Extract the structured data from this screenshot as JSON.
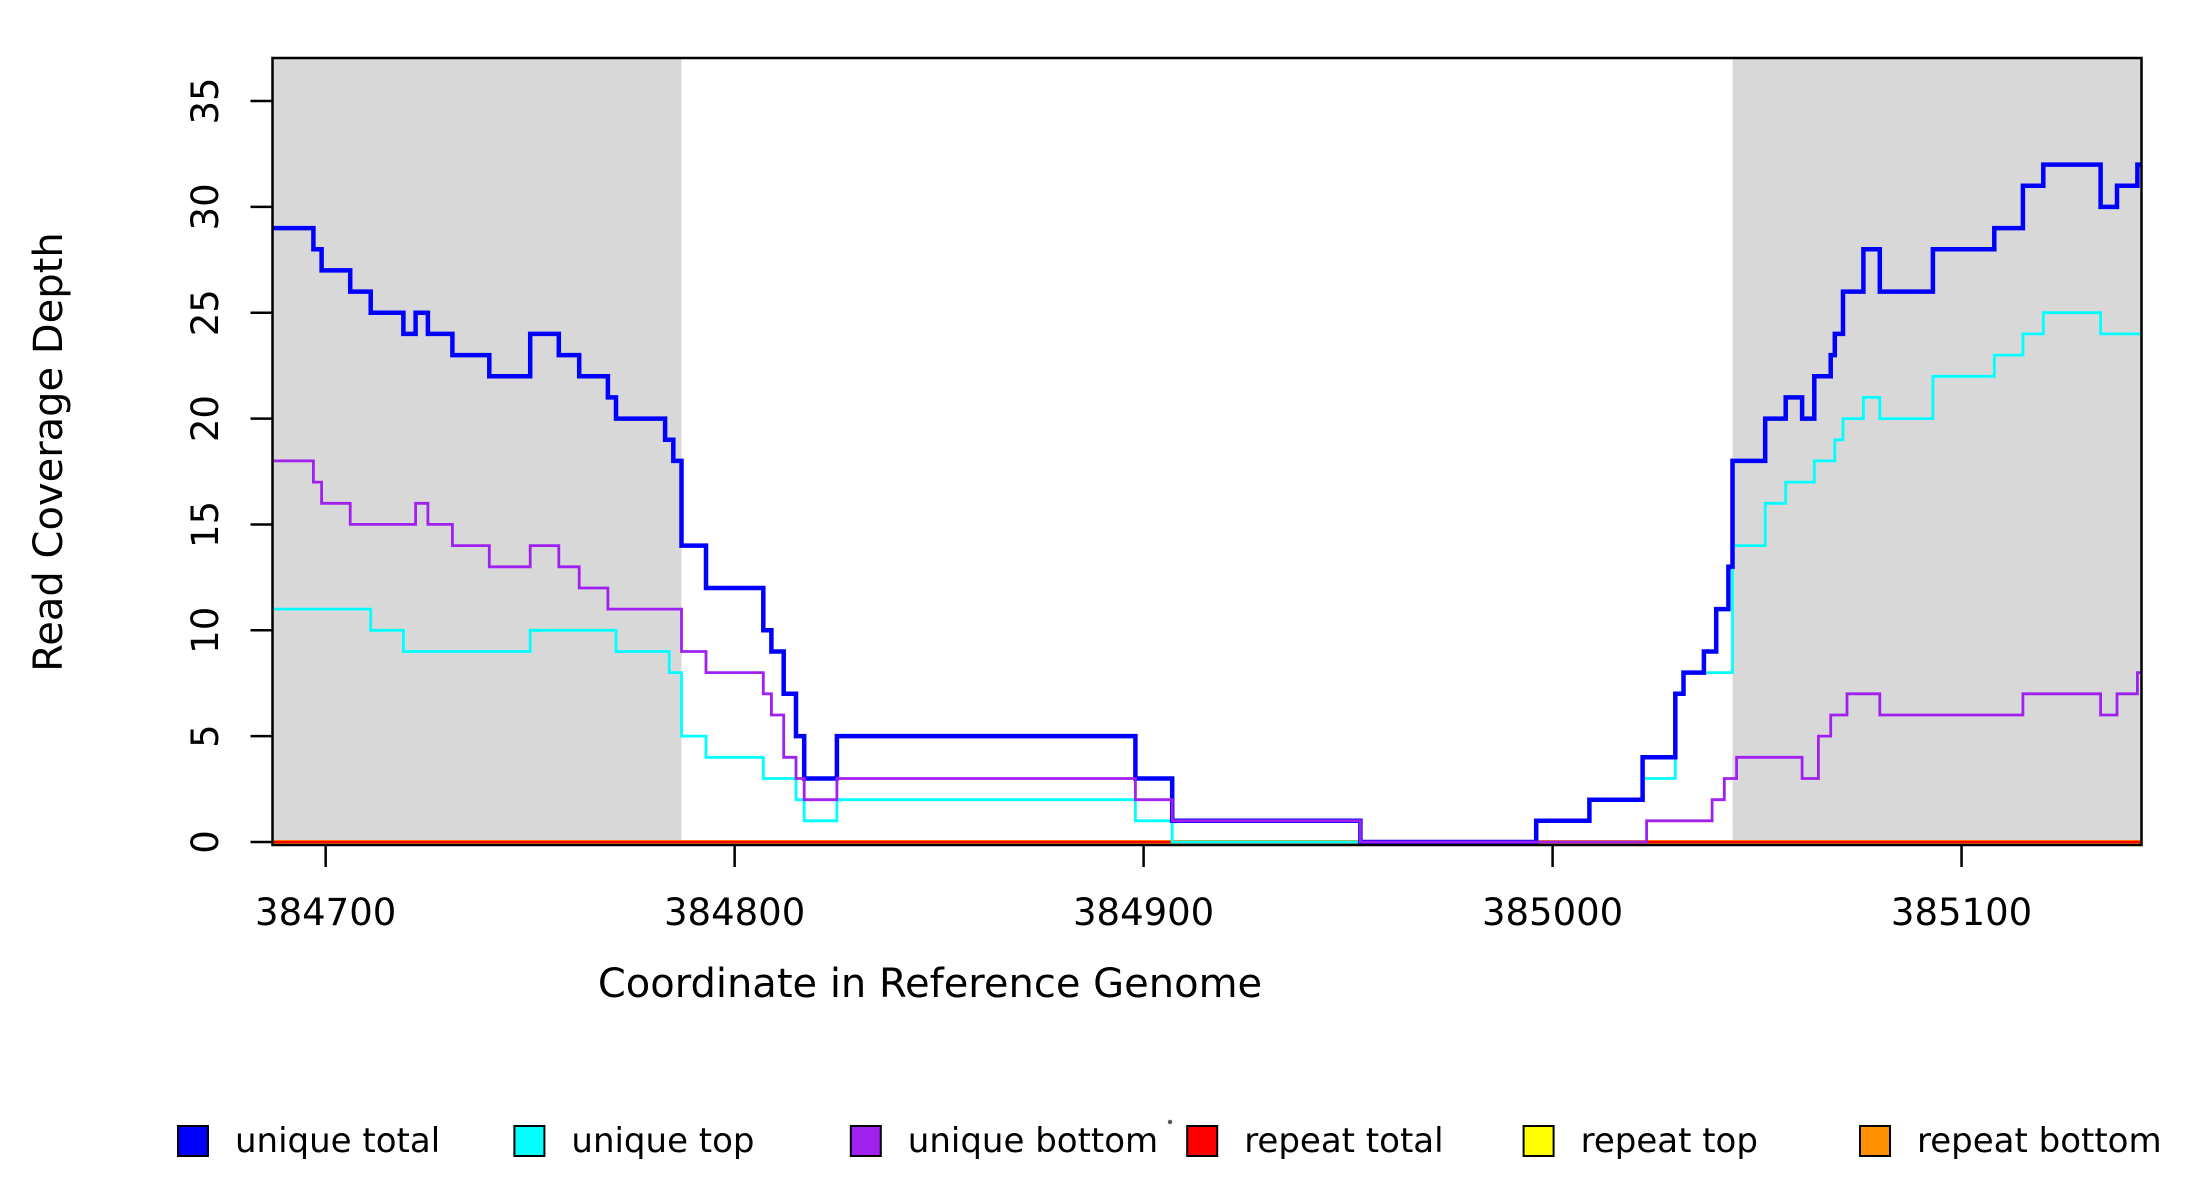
{
  "chart_data": {
    "type": "line",
    "subtype": "step",
    "title": "",
    "xlabel": "Coordinate in Reference Genome",
    "ylabel": "Read Coverage Depth",
    "x_range": [
      384687,
      385144
    ],
    "y_range": [
      0,
      37
    ],
    "x_ticks": [
      384700,
      384800,
      384900,
      385000,
      385100
    ],
    "y_ticks": [
      0,
      5,
      10,
      15,
      20,
      25,
      30,
      35
    ],
    "grid": false,
    "legend_position": "bottom",
    "shaded_regions": [
      {
        "name": "left-repeat-region",
        "from": 384687,
        "to": 384787
      },
      {
        "name": "right-repeat-region",
        "from": 385044,
        "to": 385144
      }
    ],
    "series": [
      {
        "name": "repeat bottom",
        "color": "#FF9100",
        "width": 4,
        "steps": [
          [
            384687,
            0
          ]
        ]
      },
      {
        "name": "repeat top",
        "color": "#FFFF00",
        "width": 2.5,
        "steps": [
          [
            384687,
            0
          ]
        ]
      },
      {
        "name": "repeat total",
        "color": "#FF0000",
        "width": 2.5,
        "steps": [
          [
            384687,
            0
          ]
        ]
      },
      {
        "name": "unique top",
        "color": "#00FFFF",
        "width": 2.8,
        "steps": [
          [
            384687,
            11
          ],
          [
            384711,
            10
          ],
          [
            384719,
            9
          ],
          [
            384750,
            10
          ],
          [
            384771,
            9
          ],
          [
            384784,
            8
          ],
          [
            384787,
            5
          ],
          [
            384793,
            4
          ],
          [
            384807,
            3
          ],
          [
            384815,
            2
          ],
          [
            384817,
            1
          ],
          [
            384825,
            2
          ],
          [
            384898,
            1
          ],
          [
            384907,
            0
          ],
          [
            384996,
            1
          ],
          [
            385009,
            2
          ],
          [
            385022,
            3
          ],
          [
            385030,
            7
          ],
          [
            385032,
            8
          ],
          [
            385044,
            14
          ],
          [
            385052,
            16
          ],
          [
            385057,
            17
          ],
          [
            385064,
            18
          ],
          [
            385069,
            19
          ],
          [
            385071,
            20
          ],
          [
            385076,
            21
          ],
          [
            385080,
            20
          ],
          [
            385093,
            22
          ],
          [
            385108,
            23
          ],
          [
            385115,
            24
          ],
          [
            385120,
            25
          ],
          [
            385134,
            24
          ]
        ]
      },
      {
        "name": "unique total",
        "color": "#0000FF",
        "width": 4.5,
        "steps": [
          [
            384687,
            29
          ],
          [
            384697,
            28
          ],
          [
            384699,
            27
          ],
          [
            384706,
            26
          ],
          [
            384711,
            25
          ],
          [
            384719,
            24
          ],
          [
            384722,
            25
          ],
          [
            384725,
            24
          ],
          [
            384731,
            23
          ],
          [
            384740,
            22
          ],
          [
            384750,
            24
          ],
          [
            384757,
            23
          ],
          [
            384762,
            22
          ],
          [
            384769,
            21
          ],
          [
            384771,
            20
          ],
          [
            384783,
            19
          ],
          [
            384785,
            18
          ],
          [
            384787,
            14
          ],
          [
            384793,
            12
          ],
          [
            384807,
            10
          ],
          [
            384809,
            9
          ],
          [
            384812,
            7
          ],
          [
            384815,
            5
          ],
          [
            384817,
            3
          ],
          [
            384825,
            5
          ],
          [
            384898,
            3
          ],
          [
            384907,
            1
          ],
          [
            384953,
            0
          ],
          [
            384996,
            1
          ],
          [
            385009,
            2
          ],
          [
            385022,
            4
          ],
          [
            385030,
            7
          ],
          [
            385032,
            8
          ],
          [
            385037,
            9
          ],
          [
            385040,
            11
          ],
          [
            385043,
            13
          ],
          [
            385044,
            18
          ],
          [
            385052,
            20
          ],
          [
            385057,
            21
          ],
          [
            385061,
            20
          ],
          [
            385064,
            22
          ],
          [
            385068,
            23
          ],
          [
            385069,
            24
          ],
          [
            385071,
            26
          ],
          [
            385076,
            28
          ],
          [
            385080,
            26
          ],
          [
            385093,
            28
          ],
          [
            385108,
            29
          ],
          [
            385115,
            31
          ],
          [
            385120,
            32
          ],
          [
            385134,
            30
          ],
          [
            385138,
            31
          ],
          [
            385143,
            32
          ]
        ]
      },
      {
        "name": "unique bottom",
        "color": "#A020F0",
        "width": 2.8,
        "steps": [
          [
            384687,
            18
          ],
          [
            384697,
            17
          ],
          [
            384699,
            16
          ],
          [
            384706,
            15
          ],
          [
            384722,
            16
          ],
          [
            384725,
            15
          ],
          [
            384731,
            14
          ],
          [
            384740,
            13
          ],
          [
            384750,
            14
          ],
          [
            384757,
            13
          ],
          [
            384762,
            12
          ],
          [
            384769,
            11
          ],
          [
            384787,
            9
          ],
          [
            384793,
            8
          ],
          [
            384807,
            7
          ],
          [
            384809,
            6
          ],
          [
            384812,
            4
          ],
          [
            384815,
            3
          ],
          [
            384817,
            2
          ],
          [
            384825,
            3
          ],
          [
            384898,
            2
          ],
          [
            384907,
            1
          ],
          [
            384953,
            0
          ],
          [
            385023,
            1
          ],
          [
            385039,
            2
          ],
          [
            385042,
            3
          ],
          [
            385045,
            4
          ],
          [
            385061,
            3
          ],
          [
            385065,
            5
          ],
          [
            385068,
            6
          ],
          [
            385072,
            7
          ],
          [
            385080,
            6
          ],
          [
            385115,
            7
          ],
          [
            385134,
            6
          ],
          [
            385138,
            7
          ],
          [
            385143,
            8
          ]
        ]
      }
    ],
    "legend": [
      {
        "label": "unique total",
        "color": "#0000FF"
      },
      {
        "label": "unique top",
        "color": "#00FFFF"
      },
      {
        "label": "unique bottom",
        "color": "#A020F0"
      },
      {
        "label": "repeat total",
        "color": "#FF0000"
      },
      {
        "label": "repeat top",
        "color": "#FFFF00"
      },
      {
        "label": "repeat bottom",
        "color": "#FF9100"
      }
    ],
    "colors": {
      "shade": "#D8D8D8",
      "frame": "#000000",
      "background": "#FFFFFF"
    }
  }
}
